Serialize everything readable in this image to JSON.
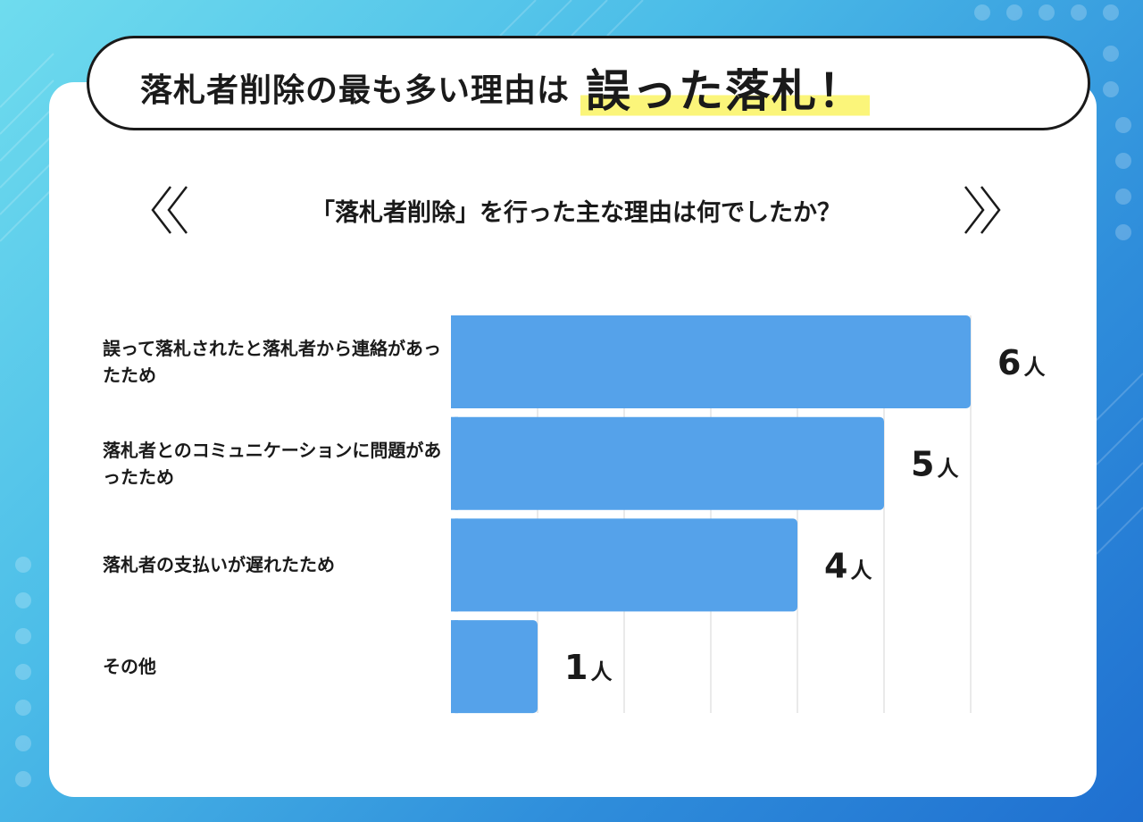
{
  "header": {
    "title_main": "落札者削除の最も多い理由は",
    "title_highlight": "誤った落札！"
  },
  "question": "「落札者削除」を行った主な理由は何でしたか？",
  "colors": {
    "bar": "#55a2ea",
    "highlight": "#fbf57a",
    "text": "#1a1a1a",
    "grid": "#e4e4e4"
  },
  "chart_data": {
    "type": "bar",
    "orientation": "horizontal",
    "categories": [
      "誤って落札されたと落札者から連絡があったため",
      "落札者とのコミュニケーションに問題があったため",
      "落札者の支払いが遅れたため",
      "その他"
    ],
    "values": [
      6,
      5,
      4,
      1
    ],
    "value_labels": [
      "6人",
      "5人",
      "4人",
      "1人"
    ],
    "xlim": [
      0,
      6
    ],
    "grid": true
  }
}
